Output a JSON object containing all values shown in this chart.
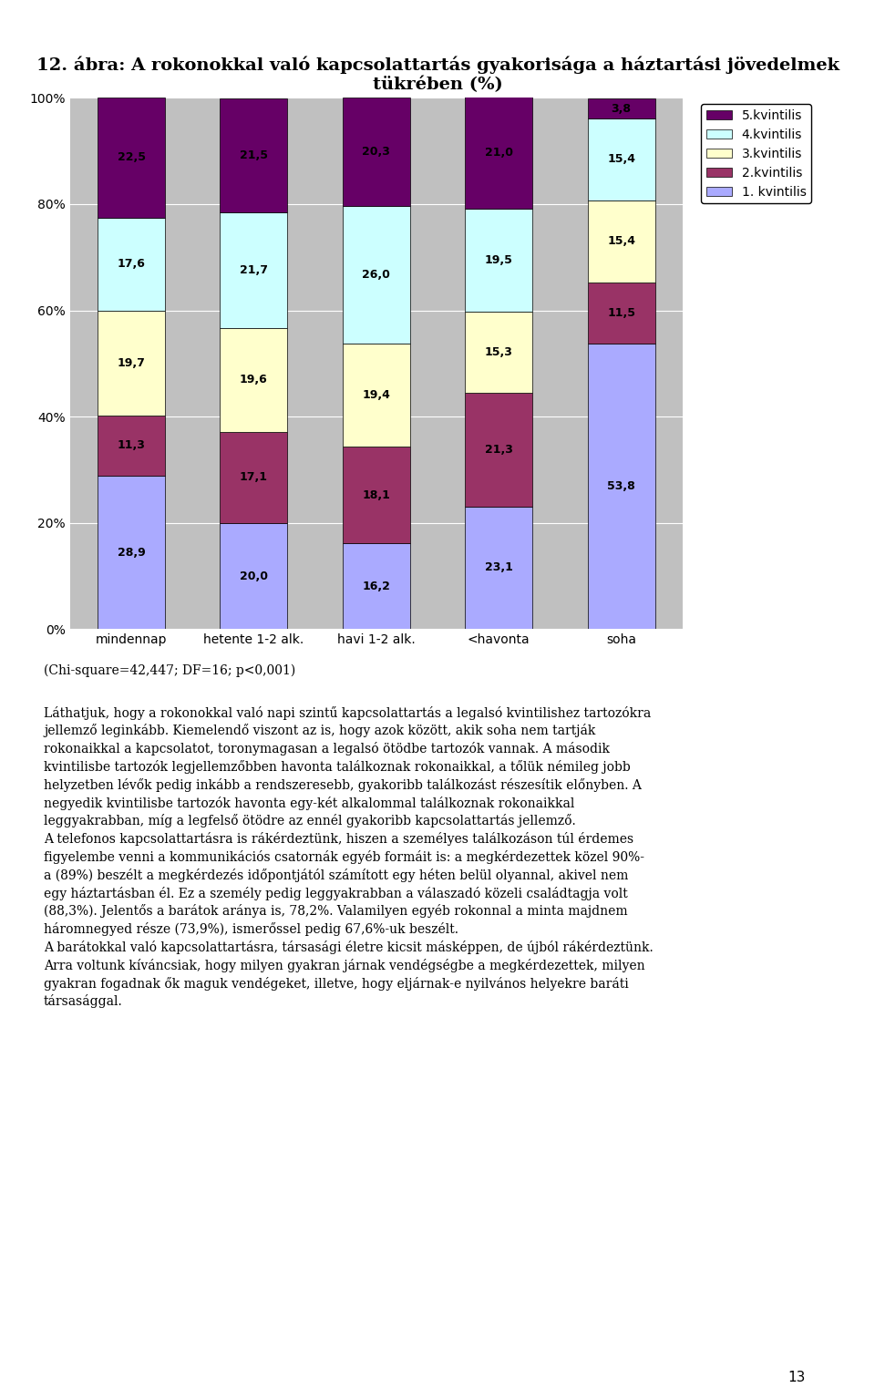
{
  "title": "12. ábra: A rokonokkal való kapcsolattartás gyakorisága a háztartási jövedelmek\ntükrében (%)",
  "categories": [
    "mindennap",
    "hetente 1-2 alk.",
    "havi 1-2 alk.",
    "<havonta",
    "soha"
  ],
  "series": [
    {
      "name": "1. kvintilis",
      "color": "#aaaaff",
      "values": [
        28.9,
        20.0,
        16.2,
        23.1,
        53.8
      ]
    },
    {
      "name": "2.kvintilis",
      "color": "#993366",
      "values": [
        11.3,
        17.1,
        18.1,
        21.3,
        11.5
      ]
    },
    {
      "name": "3.kvintilis",
      "color": "#ffffcc",
      "values": [
        19.7,
        19.6,
        19.4,
        15.3,
        15.4
      ]
    },
    {
      "name": "4.kvintilis",
      "color": "#ccffff",
      "values": [
        17.6,
        21.7,
        26.0,
        19.5,
        15.4
      ]
    },
    {
      "name": "5.kvintilis",
      "color": "#660066",
      "values": [
        22.5,
        21.5,
        20.3,
        21.0,
        3.8
      ]
    }
  ],
  "ylim": [
    0,
    100
  ],
  "yticks": [
    0,
    20,
    40,
    60,
    80,
    100
  ],
  "ytick_labels": [
    "0%",
    "20%",
    "40%",
    "60%",
    "80%",
    "100%"
  ],
  "background_color": "#c0c0c0",
  "plot_bg_color": "#c0c0c0",
  "bar_width": 0.55,
  "legend_order": [
    4,
    3,
    2,
    1,
    0
  ]
}
